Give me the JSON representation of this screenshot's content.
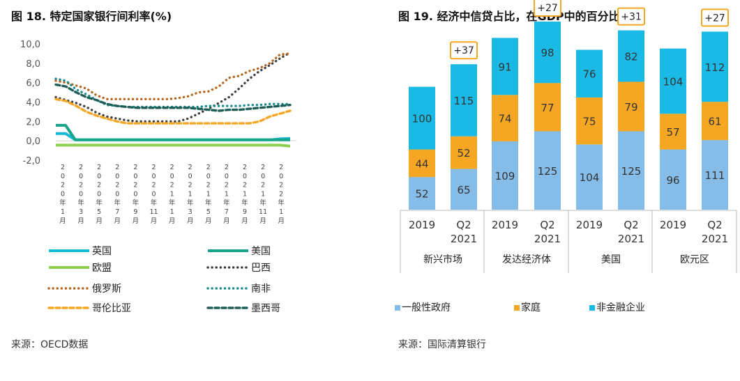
{
  "left": {
    "title": "图 18. 特定国家银行间利率(%)",
    "source": "来源：OECD数据"
  },
  "right": {
    "title": "图 19. 经济中信贷占比，在GDP中的百分比",
    "source": "来源：国际清算银行"
  },
  "chart_data": [
    {
      "type": "line",
      "title": "图 18. 特定国家银行间利率(%)",
      "ylim": [
        -2,
        10
      ],
      "yticks": [
        "10,0",
        "8,0",
        "6,0",
        "4,0",
        "2,0",
        "0,0",
        "-2,0"
      ],
      "ytick_values": [
        10,
        8,
        6,
        4,
        2,
        0,
        -2
      ],
      "xticks": [
        "2020年1月",
        "2020年3月",
        "2020年5月",
        "2020年7月",
        "2020年9月",
        "2020年11月",
        "2021年1月",
        "2021年3月",
        "2021年5月",
        "2021年7月",
        "2021年9月",
        "2021年11月",
        "2022年1月"
      ],
      "series": [
        {
          "name": "英国",
          "color": "#16b9d8",
          "style": "solid",
          "values": [
            0.75,
            0.75,
            0.1,
            0.1,
            0.1,
            0.1,
            0.1,
            0.1,
            0.1,
            0.1,
            0.1,
            0.1,
            0.1,
            0.1,
            0.1,
            0.1,
            0.1,
            0.1,
            0.1,
            0.1,
            0.1,
            0.1,
            0.1,
            0.2,
            0.25
          ]
        },
        {
          "name": "美国",
          "color": "#17a58a",
          "style": "solid",
          "values": [
            1.6,
            1.6,
            0.1,
            0.1,
            0.1,
            0.1,
            0.1,
            0.1,
            0.1,
            0.1,
            0.1,
            0.1,
            0.1,
            0.1,
            0.1,
            0.1,
            0.1,
            0.1,
            0.1,
            0.1,
            0.1,
            0.1,
            0.1,
            0.1,
            0.1
          ]
        },
        {
          "name": "欧盟",
          "color": "#8fcf4e",
          "style": "solid",
          "values": [
            -0.45,
            -0.45,
            -0.45,
            -0.45,
            -0.45,
            -0.45,
            -0.45,
            -0.45,
            -0.45,
            -0.45,
            -0.45,
            -0.45,
            -0.45,
            -0.45,
            -0.45,
            -0.45,
            -0.45,
            -0.45,
            -0.45,
            -0.45,
            -0.45,
            -0.45,
            -0.45,
            -0.55
          ]
        },
        {
          "name": "巴西",
          "color": "#3f3f3f",
          "style": "dot",
          "values": [
            4.5,
            4.2,
            3.9,
            3.5,
            2.9,
            2.5,
            2.3,
            2.1,
            2.0,
            2.0,
            2.0,
            2.0,
            2.0,
            2.3,
            2.8,
            3.3,
            3.9,
            4.5,
            5.4,
            6.4,
            7.2,
            7.8,
            8.5,
            9.1
          ]
        },
        {
          "name": "俄罗斯",
          "color": "#b5651d",
          "style": "dot",
          "values": [
            6.2,
            6.0,
            5.7,
            5.4,
            4.7,
            4.3,
            4.3,
            4.3,
            4.3,
            4.3,
            4.3,
            4.3,
            4.4,
            4.6,
            5.0,
            5.1,
            5.6,
            6.5,
            6.7,
            7.2,
            7.5,
            8.0,
            8.9,
            9.0
          ]
        },
        {
          "name": "南非",
          "color": "#1b8a8f",
          "style": "dot",
          "values": [
            6.4,
            6.2,
            5.3,
            4.8,
            4.2,
            3.7,
            3.6,
            3.5,
            3.5,
            3.5,
            3.5,
            3.5,
            3.5,
            3.5,
            3.5,
            3.6,
            3.6,
            3.6,
            3.6,
            3.7,
            3.7,
            3.8,
            3.8,
            3.8
          ]
        },
        {
          "name": "哥伦比亚",
          "color": "#f5a623",
          "style": "dash",
          "values": [
            4.3,
            4.1,
            3.6,
            3.0,
            2.6,
            2.3,
            2.0,
            1.8,
            1.8,
            1.8,
            1.8,
            1.8,
            1.8,
            1.8,
            1.8,
            1.8,
            1.8,
            1.8,
            1.8,
            1.8,
            2.0,
            2.5,
            2.8,
            3.1
          ]
        },
        {
          "name": "墨西哥",
          "color": "#1f5e57",
          "style": "dash",
          "values": [
            5.8,
            5.6,
            5.0,
            4.5,
            4.2,
            3.8,
            3.6,
            3.5,
            3.4,
            3.4,
            3.4,
            3.4,
            3.4,
            3.4,
            3.3,
            3.2,
            3.1,
            3.2,
            3.2,
            3.3,
            3.4,
            3.5,
            3.6,
            3.7
          ]
        }
      ]
    },
    {
      "type": "bar",
      "title": "图 19. 经济中信贷占比，在GDP中的百分比",
      "groups": [
        "新兴市场",
        "发达经济体",
        "美国",
        "欧元区"
      ],
      "categories": [
        "2019",
        "Q2\n2021",
        "2019",
        "Q2\n2021",
        "2019",
        "Q2\n2021",
        "2019",
        "Q2\n2021"
      ],
      "series": [
        {
          "name": "一般性政府",
          "color": "#86bde8",
          "values": [
            52,
            65,
            109,
            125,
            104,
            125,
            96,
            111
          ]
        },
        {
          "name": "家庭",
          "color": "#f5a623",
          "values": [
            44,
            52,
            74,
            77,
            75,
            79,
            57,
            61
          ]
        },
        {
          "name": "非金融企业",
          "color": "#1ab9e6",
          "values": [
            100,
            115,
            91,
            98,
            76,
            82,
            104,
            112
          ]
        }
      ],
      "annotations": [
        "",
        "+37",
        "",
        "+27",
        "",
        "+31",
        "",
        "+27"
      ],
      "annotation_color": "#f5a623"
    }
  ]
}
